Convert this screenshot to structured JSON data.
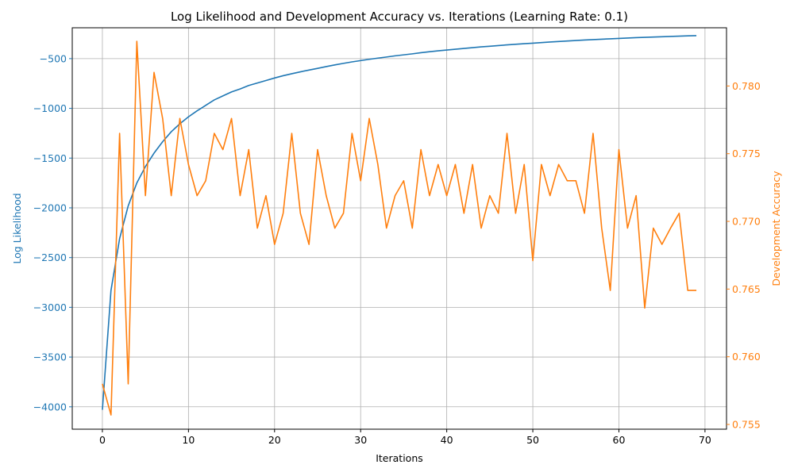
{
  "chart_data": {
    "type": "line",
    "title": "Log Likelihood and Development Accuracy vs. Iterations (Learning Rate: 0.1)",
    "xlabel": "Iterations",
    "ylabel_left": "Log Likelihood",
    "ylabel_right": "Development Accuracy",
    "xlim": [
      -3.5,
      72.5
    ],
    "ylim_left": [
      -4225,
      -190
    ],
    "ylim_right": [
      0.75465,
      0.7843
    ],
    "xticks": [
      0,
      10,
      20,
      30,
      40,
      50,
      60,
      70
    ],
    "yticks_left": [
      -4000,
      -3500,
      -3000,
      -2500,
      -2000,
      -1500,
      -1000,
      -500
    ],
    "yticks_left_labels": [
      "−4000",
      "−3500",
      "−3000",
      "−2500",
      "−2000",
      "−1500",
      "−1000",
      "−500"
    ],
    "yticks_right": [
      0.755,
      0.76,
      0.765,
      0.77,
      0.775,
      0.78
    ],
    "yticks_right_labels": [
      "0.755",
      "0.760",
      "0.765",
      "0.770",
      "0.775",
      "0.780"
    ],
    "grid": true,
    "colors": {
      "left": "#1f77b4",
      "right": "#ff7f0e"
    },
    "x": [
      0,
      1,
      2,
      3,
      4,
      5,
      6,
      7,
      8,
      9,
      10,
      11,
      12,
      13,
      14,
      15,
      16,
      17,
      18,
      19,
      20,
      21,
      22,
      23,
      24,
      25,
      26,
      27,
      28,
      29,
      30,
      31,
      32,
      33,
      34,
      35,
      36,
      37,
      38,
      39,
      40,
      41,
      42,
      43,
      44,
      45,
      46,
      47,
      48,
      49,
      50,
      51,
      52,
      53,
      54,
      55,
      56,
      57,
      58,
      59,
      60,
      61,
      62,
      63,
      64,
      65,
      66,
      67,
      68,
      69
    ],
    "series": [
      {
        "axis": "left",
        "color": "#1f77b4",
        "values": [
          -4030,
          -2830,
          -2310,
          -1980,
          -1750,
          -1585,
          -1450,
          -1335,
          -1235,
          -1155,
          -1085,
          -1025,
          -970,
          -915,
          -875,
          -835,
          -805,
          -770,
          -745,
          -720,
          -695,
          -672,
          -652,
          -633,
          -615,
          -598,
          -580,
          -563,
          -548,
          -533,
          -520,
          -507,
          -495,
          -484,
          -472,
          -462,
          -452,
          -441,
          -431,
          -422,
          -414,
          -406,
          -398,
          -390,
          -382,
          -376,
          -369,
          -362,
          -356,
          -350,
          -345,
          -339,
          -333,
          -328,
          -323,
          -318,
          -313,
          -309,
          -305,
          -301,
          -297,
          -293,
          -289,
          -286,
          -283,
          -280,
          -277,
          -274,
          -271,
          -269
        ]
      },
      {
        "axis": "right",
        "color": "#ff7f0e",
        "values": [
          0.758,
          0.7557,
          0.7765,
          0.758,
          0.7833,
          0.7719,
          0.781,
          0.7776,
          0.7719,
          0.7776,
          0.7742,
          0.7719,
          0.773,
          0.7765,
          0.7753,
          0.7776,
          0.7719,
          0.7753,
          0.7695,
          0.7719,
          0.7683,
          0.7706,
          0.7765,
          0.7706,
          0.7683,
          0.7753,
          0.7719,
          0.7695,
          0.7706,
          0.7765,
          0.773,
          0.7776,
          0.7742,
          0.7695,
          0.7719,
          0.773,
          0.7695,
          0.7753,
          0.7719,
          0.7742,
          0.7719,
          0.7742,
          0.7706,
          0.7742,
          0.7695,
          0.7719,
          0.7706,
          0.7765,
          0.7706,
          0.7742,
          0.7671,
          0.7742,
          0.7719,
          0.7742,
          0.773,
          0.773,
          0.7706,
          0.7765,
          0.7695,
          0.7649,
          0.7753,
          0.7695,
          0.7719,
          0.7636,
          0.7695,
          0.7683,
          0.7695,
          0.7706,
          0.7649,
          0.7649
        ]
      }
    ]
  }
}
